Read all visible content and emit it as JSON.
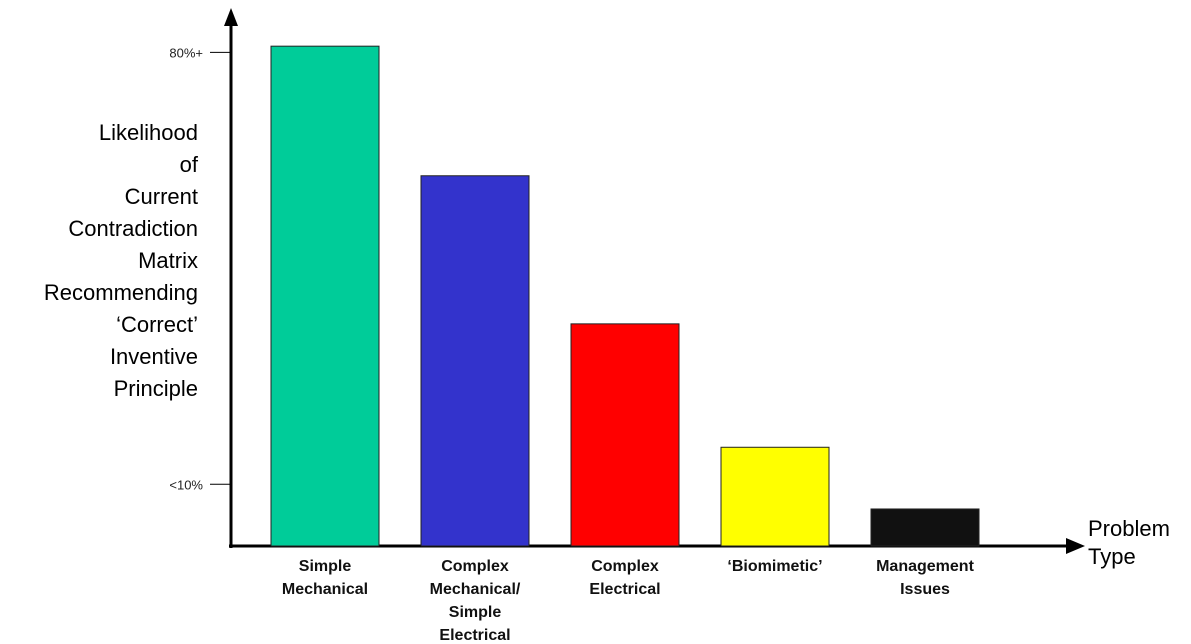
{
  "chart_data": {
    "type": "bar",
    "ylabel_lines": [
      "Likelihood",
      "of",
      "Current",
      "Contradiction",
      "Matrix",
      "Recommending",
      "‘Correct’",
      "Inventive",
      "Principle"
    ],
    "xlabel_lines": [
      "Problem",
      "Type"
    ],
    "y_ticks": [
      {
        "label": "80%+",
        "value": 80
      },
      {
        "label": "<10%",
        "value": 10
      }
    ],
    "categories": [
      [
        "Simple",
        "Mechanical"
      ],
      [
        "Complex",
        "Mechanical/",
        "Simple",
        "Electrical"
      ],
      [
        "Complex",
        "Electrical"
      ],
      [
        "‘Biomimetic’"
      ],
      [
        "Management",
        "Issues"
      ]
    ],
    "values": [
      81,
      60,
      36,
      16,
      6
    ],
    "colors": [
      "#00cc99",
      "#3333cc",
      "#ff0000",
      "#ffff00",
      "#111111"
    ],
    "ylim": [
      0,
      82
    ],
    "grid": false,
    "legend": "none"
  }
}
